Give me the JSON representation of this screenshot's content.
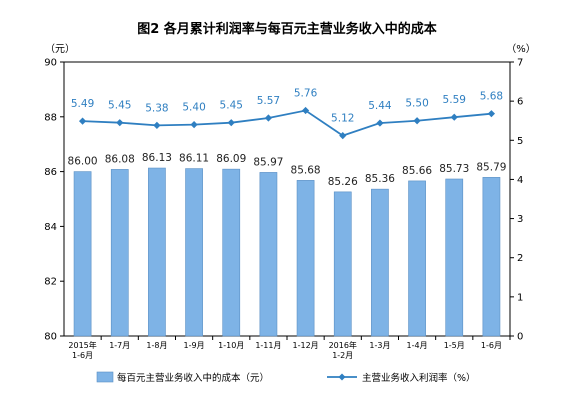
{
  "chart_data": {
    "type": "bar+line",
    "title": "图2  各月累计利润率与每百元主营业务收入中的成本",
    "y_left_unit": "（元）",
    "y_right_unit": "（%）",
    "y_left_range": [
      80,
      90
    ],
    "y_left_ticks": [
      "80",
      "82",
      "84",
      "86",
      "88",
      "90"
    ],
    "y_right_range": [
      0,
      7
    ],
    "y_right_ticks": [
      "0",
      "1",
      "2",
      "3",
      "4",
      "5",
      "6",
      "7"
    ],
    "categories": [
      [
        "2015年",
        "1-6月"
      ],
      [
        "1-7月"
      ],
      [
        "1-8月"
      ],
      [
        "1-9月"
      ],
      [
        "1-10月"
      ],
      [
        "1-11月"
      ],
      [
        "1-12月"
      ],
      [
        "2016年",
        "1-2月"
      ],
      [
        "1-3月"
      ],
      [
        "1-4月"
      ],
      [
        "1-5月"
      ],
      [
        "1-6月"
      ]
    ],
    "series": [
      {
        "name": "每百元主营业务收入中的成本（元）",
        "type": "bar",
        "axis": "left",
        "color": "#7EB3E6",
        "values": [
          86.0,
          86.08,
          86.13,
          86.11,
          86.09,
          85.97,
          85.68,
          85.26,
          85.36,
          85.66,
          85.73,
          85.79
        ],
        "labels": [
          "86.00",
          "86.08",
          "86.13",
          "86.11",
          "86.09",
          "85.97",
          "85.68",
          "85.26",
          "85.36",
          "85.66",
          "85.73",
          "85.79"
        ]
      },
      {
        "name": "主营业务收入利润率（%）",
        "type": "line",
        "axis": "right",
        "color": "#2F7FC1",
        "values": [
          5.49,
          5.45,
          5.38,
          5.4,
          5.45,
          5.57,
          5.76,
          5.12,
          5.44,
          5.5,
          5.59,
          5.68
        ],
        "labels": [
          "5.49",
          "5.45",
          "5.38",
          "5.40",
          "5.45",
          "5.57",
          "5.76",
          "5.12",
          "5.44",
          "5.50",
          "5.59",
          "5.68"
        ]
      }
    ],
    "legend_position": "bottom",
    "grid": false
  }
}
